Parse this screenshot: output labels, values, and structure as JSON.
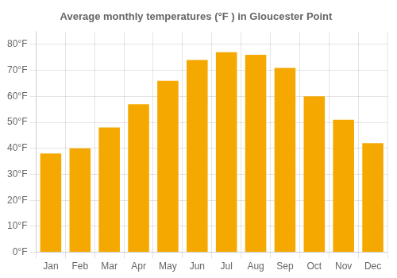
{
  "chart_data": {
    "type": "bar",
    "title": "Average monthly temperatures (°F ) in Gloucester Point",
    "categories": [
      "Jan",
      "Feb",
      "Mar",
      "Apr",
      "May",
      "Jun",
      "Jul",
      "Aug",
      "Sep",
      "Oct",
      "Nov",
      "Dec"
    ],
    "values": [
      38,
      40,
      48,
      57,
      66,
      74,
      77,
      76,
      71,
      60,
      51,
      42
    ],
    "color": "#F5A800",
    "ylim": [
      0,
      85
    ],
    "yticks": [
      {
        "value": 0,
        "label": "0°F"
      },
      {
        "value": 10,
        "label": "10°F"
      },
      {
        "value": 20,
        "label": "20°F"
      },
      {
        "value": 30,
        "label": "30°F"
      },
      {
        "value": 40,
        "label": "40°F"
      },
      {
        "value": 50,
        "label": "50°F"
      },
      {
        "value": 60,
        "label": "60°F"
      },
      {
        "value": 70,
        "label": "70°F"
      },
      {
        "value": 80,
        "label": "80°F"
      }
    ],
    "grid": true
  }
}
